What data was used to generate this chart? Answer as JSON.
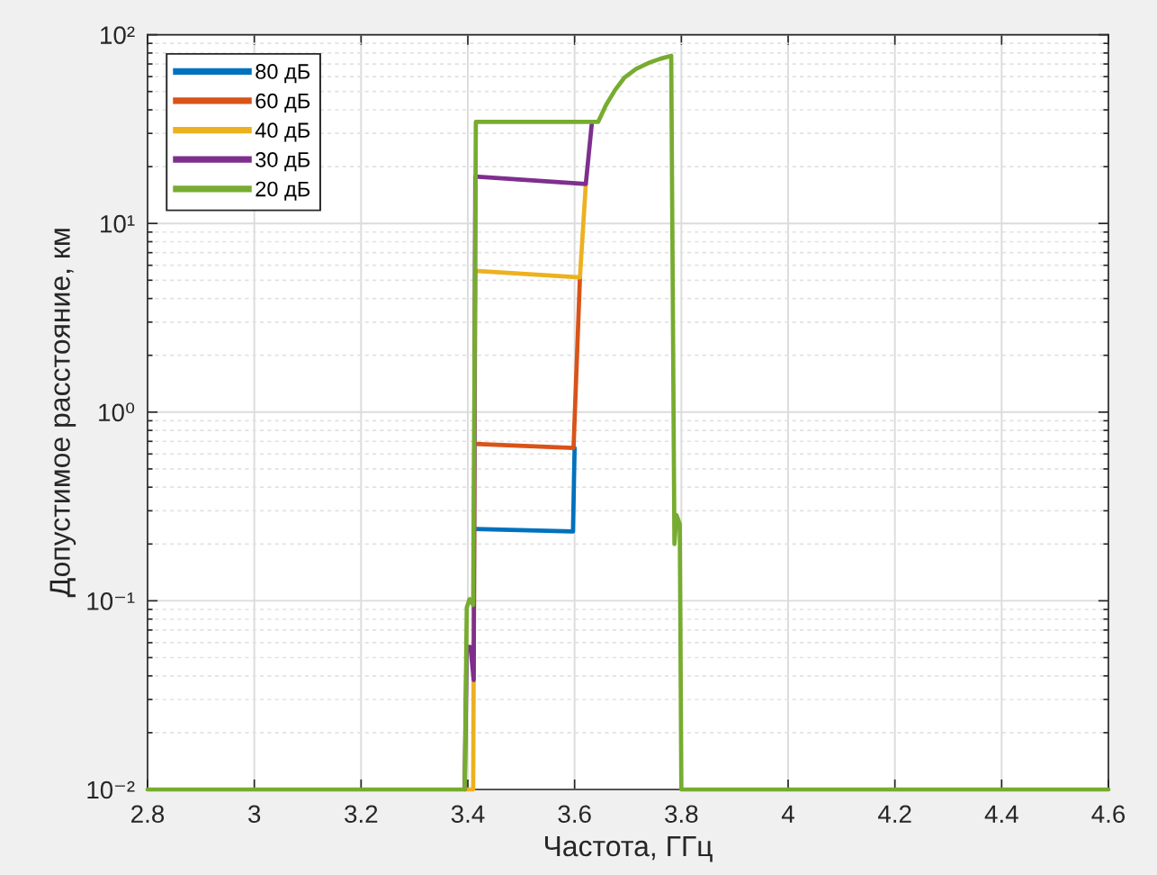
{
  "chart_data": {
    "type": "line",
    "xlabel": "Частота, ГГц",
    "ylabel": "Допустимое расстояние, км",
    "log": "y",
    "xlim": [
      2.8,
      4.6
    ],
    "xticks": [
      2.8,
      3,
      3.2,
      3.4,
      3.6,
      3.8,
      4,
      4.2,
      4.4,
      4.6
    ],
    "ylim": [
      0.01,
      100
    ],
    "yticks": [
      {
        "value": 0.01,
        "label": "10⁻²"
      },
      {
        "value": 0.1,
        "label": "10⁻¹"
      },
      {
        "value": 1,
        "label": "10⁰"
      },
      {
        "value": 10,
        "label": "10¹"
      },
      {
        "value": 100,
        "label": "10²"
      }
    ],
    "grid": true,
    "legend": "top left",
    "series": [
      {
        "name": "80 дБ",
        "color": "#0072bd",
        "x": [
          3.414,
          3.597,
          3.6
        ],
        "values": [
          0.24,
          0.233,
          0.645
        ]
      },
      {
        "name": "60 дБ",
        "color": "#d95319",
        "x": [
          3.414,
          3.598,
          3.61
        ],
        "values": [
          0.678,
          0.645,
          5.18
        ]
      },
      {
        "name": "40 дБ",
        "color": "#edb120",
        "x": [
          3.394,
          3.41,
          3.414,
          3.61,
          3.621
        ],
        "values": [
          0.01,
          0.01,
          5.6,
          5.18,
          16.2
        ]
      },
      {
        "name": "30 дБ",
        "color": "#7e2f8e",
        "x": [
          3.394,
          3.398,
          3.405,
          3.411,
          3.414,
          3.621,
          3.632
        ],
        "values": [
          0.01,
          0.057,
          0.057,
          0.038,
          17.7,
          16.2,
          33.4
        ]
      },
      {
        "name": "20 дБ",
        "color": "#77ac30",
        "x": [
          2.8,
          3.394,
          3.398,
          3.403,
          3.41,
          3.415,
          3.644,
          3.659,
          3.676,
          3.693,
          3.715,
          3.738,
          3.76,
          3.781,
          3.787,
          3.791,
          3.797,
          3.8,
          4.6
        ],
        "values": [
          0.01,
          0.01,
          0.092,
          0.102,
          0.095,
          34.5,
          34.5,
          42.5,
          51,
          59.1,
          65.9,
          70.8,
          74.5,
          77.4,
          0.2,
          0.284,
          0.255,
          0.01,
          0.01
        ]
      }
    ]
  }
}
